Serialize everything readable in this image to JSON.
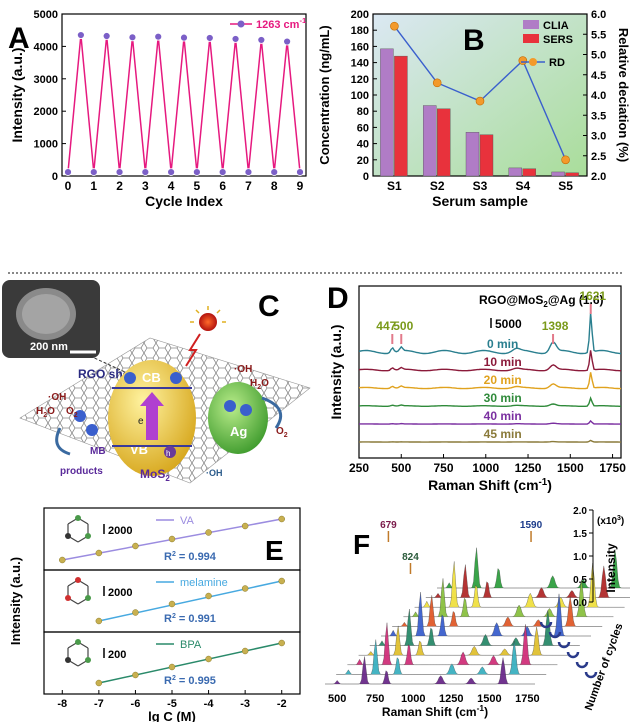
{
  "panels": {
    "A": {
      "letter": "A"
    },
    "B": {
      "letter": "B"
    },
    "C": {
      "letter": "C",
      "scale_bar": "200 nm",
      "labels": {
        "rgo_sheet": "RGO sheet",
        "cb": "CB",
        "vb": "VB",
        "electron": "e",
        "hole": "h",
        "ag": "Ag",
        "mos2": "MoS",
        "mos2_sub": "2",
        "oh1": "·OH",
        "h2o1": "H",
        "o2a": "O",
        "mb": "MB",
        "products": "products",
        "oh2": "·OH",
        "o2b": "O",
        "oh3": "·OH",
        "h2o2": "H",
        "o2c": "O",
        "oh4": "·OH"
      }
    },
    "D": {
      "letter": "D"
    },
    "E": {
      "letter": "E"
    },
    "F": {
      "letter": "F"
    }
  },
  "chart_data": [
    {
      "panel": "A",
      "type": "line",
      "xlabel": "Cycle Index",
      "ylabel": "Intensity (a.u.)",
      "xlim": [
        0,
        9
      ],
      "ylim": [
        0,
        5000
      ],
      "xticks": [
        0,
        1,
        2,
        3,
        4,
        5,
        6,
        7,
        8,
        9
      ],
      "yticks": [
        0,
        1000,
        2000,
        3000,
        4000,
        5000
      ],
      "series": [
        {
          "name": "1263 cm",
          "name_sup": "-1",
          "color": "#e6197f",
          "marker_color": "#7b5fc7",
          "x": [
            0,
            0.5,
            1,
            1.5,
            2,
            2.5,
            3,
            3.5,
            4,
            4.5,
            5,
            5.5,
            6,
            6.5,
            7,
            7.5,
            8,
            8.5,
            9
          ],
          "y": [
            120,
            4350,
            120,
            4320,
            120,
            4280,
            120,
            4300,
            120,
            4270,
            120,
            4260,
            120,
            4230,
            120,
            4200,
            120,
            4150,
            120
          ]
        }
      ],
      "legend": "top-right"
    },
    {
      "panel": "B",
      "type": "bar",
      "xlabel": "Serum sample",
      "ylabel": "Concentration (ng/mL)",
      "ylabel_right": "Relative deciation (%)",
      "categories": [
        "S1",
        "S2",
        "S3",
        "S4",
        "S5"
      ],
      "ylim": [
        0,
        200
      ],
      "ylim_right": [
        2.0,
        6.0
      ],
      "yticks": [
        0,
        20,
        40,
        60,
        80,
        100,
        120,
        140,
        160,
        180,
        200
      ],
      "yticks_right": [
        "2.0",
        "2.5",
        "3.0",
        "3.5",
        "4.0",
        "4.5",
        "5.0",
        "5.5",
        "6.0"
      ],
      "series": [
        {
          "name": "CLIA",
          "color": "#b07cc6",
          "values": [
            157,
            87,
            54,
            10,
            5
          ]
        },
        {
          "name": "SERS",
          "color": "#e8323c",
          "values": [
            148,
            83,
            51,
            9,
            4
          ]
        },
        {
          "name": "RD",
          "color": "#3a5fcd",
          "marker_color": "#f39a2b",
          "axis": "right",
          "values": [
            5.7,
            4.3,
            3.85,
            4.85,
            2.4
          ]
        }
      ],
      "legend": "top-right"
    },
    {
      "panel": "D",
      "type": "line",
      "title": "RGO@MoS",
      "title_sub": "2",
      "title_tail": "@Ag (1.6)",
      "scale_label": "5000",
      "xlabel": "Raman Shift (cm",
      "xlabel_sup": "-1",
      "xlabel_tail": ")",
      "ylabel": "Intensity (a.u.)",
      "xlim": [
        250,
        1800
      ],
      "xticks": [
        250,
        500,
        750,
        1000,
        1250,
        1500,
        1750
      ],
      "peaks": [
        {
          "label": "447",
          "x": 447
        },
        {
          "label": "500",
          "x": 500
        },
        {
          "label": "1398",
          "x": 1398
        },
        {
          "label": "1621",
          "x": 1621
        }
      ],
      "series": [
        {
          "name": "0 min",
          "color": "#2a7f8f",
          "peak_height": 1.0
        },
        {
          "name": "10 min",
          "color": "#8b1a3a",
          "peak_height": 0.5
        },
        {
          "name": "20 min",
          "color": "#e0a21e",
          "peak_height": 0.4
        },
        {
          "name": "30 min",
          "color": "#2f8a3a",
          "peak_height": 0.2
        },
        {
          "name": "40 min",
          "color": "#7a2fa0",
          "peak_height": 0.08
        },
        {
          "name": "45 min",
          "color": "#8a7a3a",
          "peak_height": 0.04
        }
      ]
    },
    {
      "panel": "E",
      "type": "scatter",
      "xlabel": "lg C (M)",
      "ylabel": "Intensity (a.u.)",
      "xlim": [
        -8.5,
        -1.5
      ],
      "xticks": [
        -8,
        -7,
        -6,
        -5,
        -4,
        -3,
        -2
      ],
      "subplots": [
        {
          "name": "VA",
          "scale_label": "2000",
          "r2": "R",
          "r2_sup": "2",
          "r2_val": " = 0.994",
          "line_color": "#9b8ce0",
          "x": [
            -8,
            -7,
            -6,
            -5,
            -4,
            -3,
            -2
          ],
          "y": [
            0.08,
            0.22,
            0.36,
            0.5,
            0.63,
            0.76,
            0.9
          ]
        },
        {
          "name": "melamine",
          "scale_label": "2000",
          "r2": "R",
          "r2_sup": "2",
          "r2_val": " = 0.991",
          "line_color": "#47a9e0",
          "x": [
            -7,
            -6,
            -5,
            -4,
            -3,
            -2
          ],
          "y": [
            0.1,
            0.27,
            0.44,
            0.6,
            0.75,
            0.9
          ]
        },
        {
          "name": "BPA",
          "scale_label": "200",
          "r2": "R",
          "r2_sup": "2",
          "r2_val": " = 0.995",
          "line_color": "#2a8a6a",
          "x": [
            -7,
            -6,
            -5,
            -4,
            -3,
            -2
          ],
          "y": [
            0.1,
            0.26,
            0.42,
            0.58,
            0.74,
            0.9
          ]
        }
      ]
    },
    {
      "panel": "F",
      "type": "area",
      "xlabel": "Raman Shift (cm",
      "xlabel_sup": "-1",
      "xlabel_tail": ")",
      "zlabel": "Intensity",
      "zunit": "(x10",
      "zunit_sup": "3",
      "zunit_tail": ")",
      "ylabel": "Number of cycles",
      "xticks": [
        500,
        750,
        1000,
        1250,
        1500,
        1750
      ],
      "zticks": [
        "0.0",
        "0.5",
        "1.0",
        "1.5",
        "2.0"
      ],
      "peaks": [
        {
          "label": "679",
          "x": 679,
          "color": "#7a1a4a"
        },
        {
          "label": "824",
          "x": 824,
          "color": "#2a5a3a"
        },
        {
          "label": "1590",
          "x": 1590,
          "color": "#1a3a8a"
        }
      ],
      "series": [
        {
          "color": "#6a2a8a"
        },
        {
          "color": "#3ab0c0"
        },
        {
          "color": "#d0307a"
        },
        {
          "color": "#e0c030"
        },
        {
          "color": "#2a8a6a"
        },
        {
          "color": "#3a5fcd"
        },
        {
          "color": "#e05a2a"
        },
        {
          "color": "#8ac040"
        },
        {
          "color": "#f0e040"
        },
        {
          "color": "#b02a2a"
        },
        {
          "color": "#30a040"
        }
      ]
    }
  ]
}
